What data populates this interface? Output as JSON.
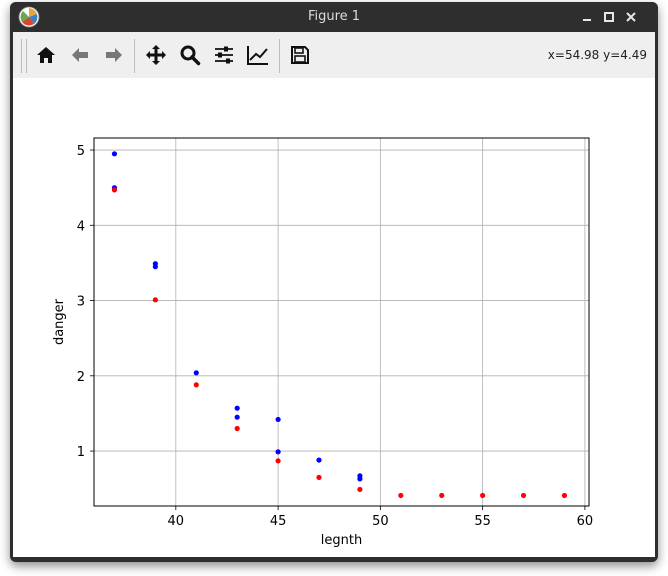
{
  "window": {
    "title": "Figure 1"
  },
  "toolbar": {
    "buttons": [
      {
        "icon": "home-icon",
        "tooltip": "Home"
      },
      {
        "icon": "back-arrow-icon",
        "tooltip": "Back"
      },
      {
        "icon": "forward-arrow-icon",
        "tooltip": "Forward"
      },
      {
        "icon": "pan-move-icon",
        "tooltip": "Pan"
      },
      {
        "icon": "zoom-magnifier-icon",
        "tooltip": "Zoom"
      },
      {
        "icon": "subplots-sliders-icon",
        "tooltip": "Subplots"
      },
      {
        "icon": "edit-axes-chart-icon",
        "tooltip": "Customize"
      },
      {
        "icon": "save-floppy-icon",
        "tooltip": "Save"
      }
    ],
    "coords": "x=54.98 y=4.49"
  },
  "chart_data": {
    "type": "scatter",
    "title": "",
    "xlabel": "legnth",
    "ylabel": "danger",
    "xlim": [
      36,
      60.2
    ],
    "ylim": [
      0.27,
      5.16
    ],
    "xticks": [
      40,
      45,
      50,
      55,
      60
    ],
    "yticks": [
      1,
      2,
      3,
      4,
      5
    ],
    "grid": true,
    "series": [
      {
        "color": "#0000ff",
        "points": [
          [
            37,
            4.95
          ],
          [
            37,
            4.5
          ],
          [
            39,
            3.49
          ],
          [
            39,
            3.45
          ],
          [
            41,
            2.04
          ],
          [
            43,
            1.57
          ],
          [
            43,
            1.45
          ],
          [
            45,
            1.42
          ],
          [
            45,
            0.99
          ],
          [
            47,
            0.88
          ],
          [
            49,
            0.67
          ],
          [
            49,
            0.63
          ]
        ]
      },
      {
        "color": "#ff0000",
        "points": [
          [
            37,
            4.47
          ],
          [
            39,
            3.01
          ],
          [
            41,
            1.88
          ],
          [
            43,
            1.3
          ],
          [
            45,
            0.87
          ],
          [
            47,
            0.65
          ],
          [
            49,
            0.49
          ],
          [
            51,
            0.41
          ],
          [
            53,
            0.41
          ],
          [
            55,
            0.41
          ],
          [
            57,
            0.41
          ],
          [
            59,
            0.41
          ]
        ]
      }
    ]
  }
}
